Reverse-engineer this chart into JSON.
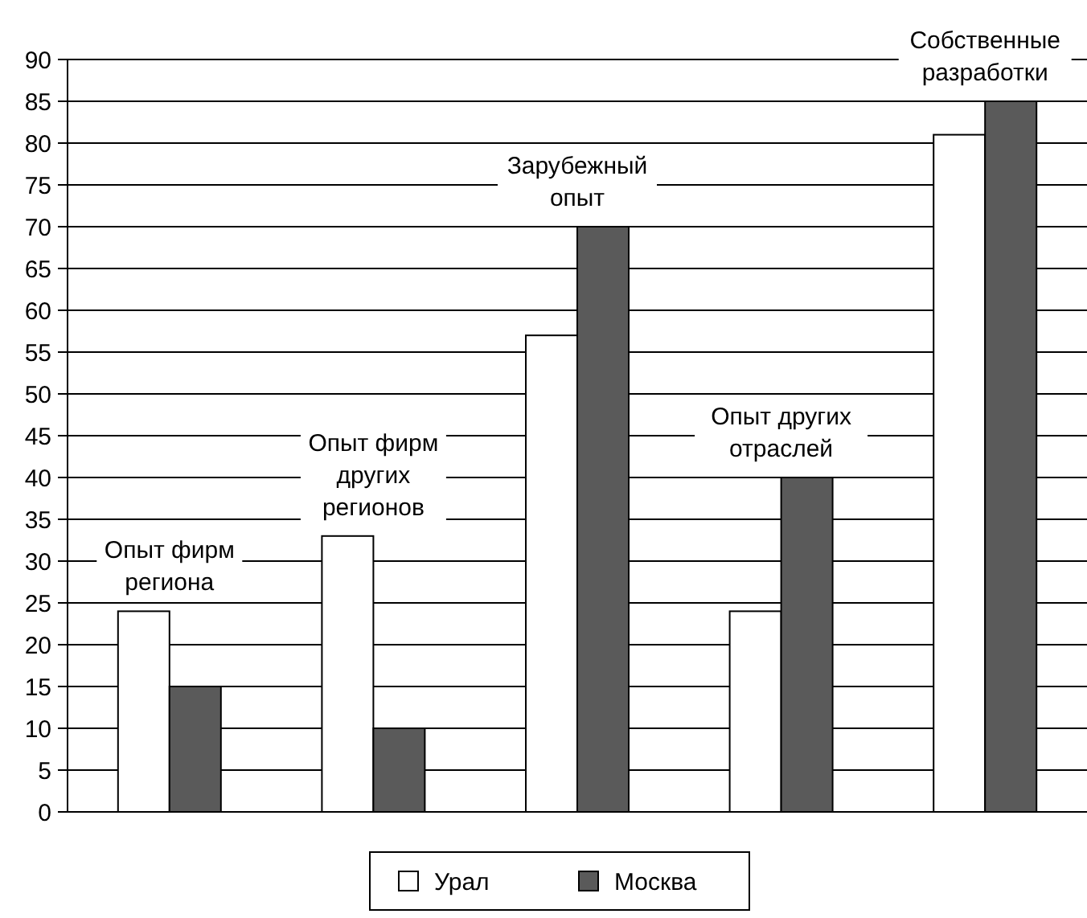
{
  "chart_data": {
    "type": "bar",
    "categories": [
      "Опыт фирм\nрегиона",
      "Опыт фирм\nдругих\nрегионов",
      "Зарубежный\nопыт",
      "Опыт других\nотраслей",
      "Собственные\nразработки"
    ],
    "series": [
      {
        "name": "Урал",
        "color": "#ffffff",
        "values": [
          24,
          33,
          57,
          24,
          81
        ]
      },
      {
        "name": "Москва",
        "color": "#5a5a5a",
        "values": [
          15,
          10,
          70,
          40,
          85
        ]
      }
    ],
    "ylim": [
      0,
      90
    ],
    "yticks": [
      0,
      5,
      10,
      15,
      20,
      25,
      30,
      35,
      40,
      45,
      50,
      55,
      60,
      65,
      70,
      75,
      80,
      85,
      90
    ],
    "grid": "y",
    "legend": "bottom"
  }
}
